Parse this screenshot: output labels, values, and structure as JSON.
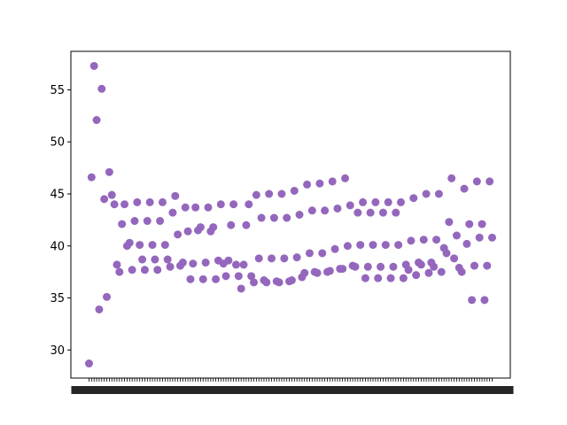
{
  "chart_data": {
    "type": "scatter",
    "title": "",
    "xlabel": "",
    "ylabel": "",
    "ylim": [
      27.3,
      58.7
    ],
    "yticks": [
      30,
      35,
      40,
      45,
      50,
      55
    ],
    "x_tick_labels_legible": false,
    "marker_color": "#9467bd",
    "grid": false,
    "legend": "none",
    "series": [
      {
        "points": [
          [
            1,
            28.7
          ],
          [
            2,
            46.6
          ],
          [
            3,
            57.3
          ],
          [
            4,
            52.1
          ],
          [
            5,
            33.9
          ],
          [
            6,
            55.1
          ],
          [
            7,
            44.5
          ],
          [
            8,
            35.1
          ],
          [
            9,
            47.1
          ],
          [
            10,
            44.9
          ],
          [
            11,
            44.0
          ],
          [
            12,
            38.2
          ],
          [
            13,
            37.5
          ],
          [
            14,
            42.1
          ],
          [
            15,
            44.0
          ],
          [
            16,
            40.0
          ],
          [
            17,
            40.3
          ],
          [
            18,
            37.7
          ],
          [
            19,
            42.4
          ],
          [
            20,
            44.2
          ],
          [
            21,
            40.1
          ],
          [
            22,
            38.7
          ],
          [
            23,
            37.7
          ],
          [
            24,
            42.4
          ],
          [
            25,
            44.2
          ],
          [
            26,
            40.1
          ],
          [
            27,
            38.7
          ],
          [
            28,
            37.7
          ],
          [
            29,
            42.4
          ],
          [
            30,
            44.2
          ],
          [
            31,
            40.1
          ],
          [
            32,
            38.7
          ],
          [
            33,
            38.0
          ],
          [
            34,
            43.2
          ],
          [
            35,
            44.8
          ],
          [
            36,
            41.1
          ],
          [
            37,
            38.1
          ],
          [
            38,
            38.4
          ],
          [
            39,
            43.7
          ],
          [
            40,
            41.4
          ],
          [
            41,
            36.8
          ],
          [
            42,
            38.3
          ],
          [
            43,
            43.7
          ],
          [
            44,
            41.5
          ],
          [
            45,
            41.8
          ],
          [
            46,
            36.8
          ],
          [
            47,
            38.4
          ],
          [
            48,
            43.7
          ],
          [
            49,
            41.4
          ],
          [
            50,
            41.8
          ],
          [
            51,
            36.8
          ],
          [
            52,
            38.6
          ],
          [
            53,
            44.0
          ],
          [
            54,
            38.3
          ],
          [
            55,
            37.1
          ],
          [
            56,
            38.6
          ],
          [
            57,
            42.0
          ],
          [
            58,
            44.0
          ],
          [
            59,
            38.2
          ],
          [
            60,
            37.1
          ],
          [
            61,
            35.9
          ],
          [
            62,
            38.2
          ],
          [
            63,
            42.0
          ],
          [
            64,
            44.0
          ],
          [
            65,
            37.1
          ],
          [
            66,
            36.5
          ],
          [
            67,
            44.9
          ],
          [
            68,
            38.8
          ],
          [
            69,
            42.7
          ],
          [
            70,
            36.7
          ],
          [
            71,
            36.5
          ],
          [
            72,
            45.0
          ],
          [
            73,
            38.8
          ],
          [
            74,
            42.7
          ],
          [
            75,
            36.6
          ],
          [
            76,
            36.5
          ],
          [
            77,
            45.0
          ],
          [
            78,
            38.8
          ],
          [
            79,
            42.7
          ],
          [
            80,
            36.6
          ],
          [
            81,
            36.7
          ],
          [
            82,
            45.3
          ],
          [
            83,
            38.9
          ],
          [
            84,
            43.0
          ],
          [
            85,
            37.0
          ],
          [
            86,
            37.4
          ],
          [
            87,
            45.9
          ],
          [
            88,
            39.3
          ],
          [
            89,
            43.4
          ],
          [
            90,
            37.5
          ],
          [
            91,
            37.4
          ],
          [
            92,
            46.0
          ],
          [
            93,
            39.3
          ],
          [
            94,
            43.4
          ],
          [
            95,
            37.5
          ],
          [
            96,
            37.6
          ],
          [
            97,
            46.2
          ],
          [
            98,
            39.7
          ],
          [
            99,
            43.6
          ],
          [
            100,
            37.8
          ],
          [
            101,
            37.8
          ],
          [
            102,
            46.5
          ],
          [
            103,
            40.0
          ],
          [
            104,
            43.9
          ],
          [
            105,
            38.1
          ],
          [
            106,
            38.0
          ],
          [
            107,
            43.2
          ],
          [
            108,
            40.1
          ],
          [
            109,
            44.2
          ],
          [
            110,
            36.9
          ],
          [
            111,
            38.0
          ],
          [
            112,
            43.2
          ],
          [
            113,
            40.1
          ],
          [
            114,
            44.2
          ],
          [
            115,
            36.9
          ],
          [
            116,
            38.0
          ],
          [
            117,
            43.2
          ],
          [
            118,
            40.1
          ],
          [
            119,
            44.2
          ],
          [
            120,
            36.9
          ],
          [
            121,
            38.0
          ],
          [
            122,
            43.2
          ],
          [
            123,
            40.1
          ],
          [
            124,
            44.2
          ],
          [
            125,
            36.9
          ],
          [
            126,
            38.2
          ],
          [
            127,
            37.7
          ],
          [
            128,
            40.5
          ],
          [
            129,
            44.6
          ],
          [
            130,
            37.2
          ],
          [
            131,
            38.4
          ],
          [
            132,
            38.2
          ],
          [
            133,
            40.6
          ],
          [
            134,
            45.0
          ],
          [
            135,
            37.4
          ],
          [
            136,
            38.4
          ],
          [
            137,
            38.0
          ],
          [
            138,
            40.6
          ],
          [
            139,
            45.0
          ],
          [
            140,
            37.5
          ],
          [
            141,
            39.8
          ],
          [
            142,
            39.3
          ],
          [
            143,
            42.3
          ],
          [
            144,
            46.5
          ],
          [
            145,
            38.8
          ],
          [
            146,
            41.0
          ],
          [
            147,
            37.9
          ],
          [
            148,
            37.5
          ],
          [
            149,
            45.5
          ],
          [
            150,
            40.2
          ],
          [
            151,
            42.1
          ],
          [
            152,
            34.8
          ],
          [
            153,
            38.1
          ],
          [
            154,
            46.2
          ],
          [
            155,
            40.8
          ],
          [
            156,
            42.1
          ],
          [
            157,
            34.8
          ],
          [
            158,
            38.1
          ],
          [
            159,
            46.2
          ],
          [
            160,
            40.8
          ]
        ]
      }
    ]
  }
}
